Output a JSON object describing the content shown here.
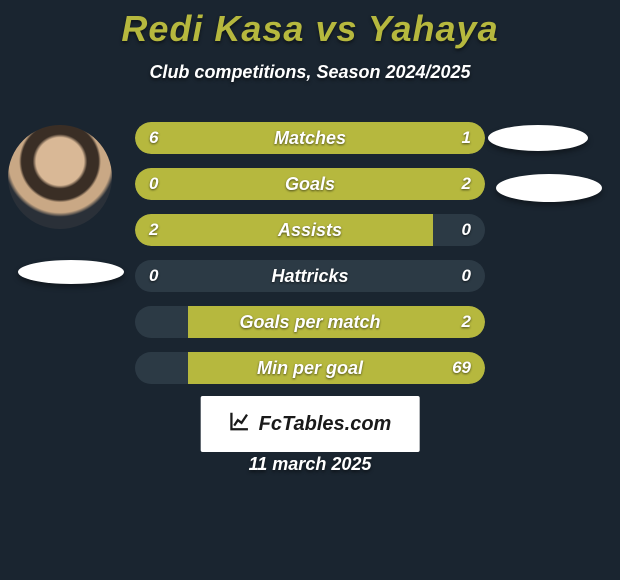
{
  "background_color": "#1a2530",
  "title": {
    "text": "Redi Kasa vs Yahaya",
    "color": "#b6b83e",
    "fontsize": 36
  },
  "subtitle": {
    "text": "Club competitions, Season 2024/2025",
    "color": "#ffffff",
    "fontsize": 18
  },
  "bar_style": {
    "track_color": "#2c3a45",
    "fill_color": "#b6b83e",
    "height": 32,
    "radius": 16,
    "label_color": "#ffffff",
    "value_color": "#ffffff",
    "label_fontsize": 18,
    "value_fontsize": 17
  },
  "bars": [
    {
      "label": "Matches",
      "left_val": "6",
      "right_val": "1",
      "left_pct": 86,
      "right_pct": 14
    },
    {
      "label": "Goals",
      "left_val": "0",
      "right_val": "2",
      "left_pct": 15,
      "right_pct": 85
    },
    {
      "label": "Assists",
      "left_val": "2",
      "right_val": "0",
      "left_pct": 85,
      "right_pct": 0
    },
    {
      "label": "Hattricks",
      "left_val": "0",
      "right_val": "0",
      "left_pct": 0,
      "right_pct": 0
    },
    {
      "label": "Goals per match",
      "left_val": "",
      "right_val": "2",
      "left_pct": 0,
      "right_pct": 85
    },
    {
      "label": "Min per goal",
      "left_val": "",
      "right_val": "69",
      "left_pct": 0,
      "right_pct": 85
    }
  ],
  "watermark": {
    "text": "FcTables.com",
    "bg_color": "#ffffff",
    "text_color": "#1a1a1a",
    "fontsize": 20
  },
  "date": {
    "text": "11 march 2025",
    "color": "#ffffff",
    "fontsize": 18
  }
}
